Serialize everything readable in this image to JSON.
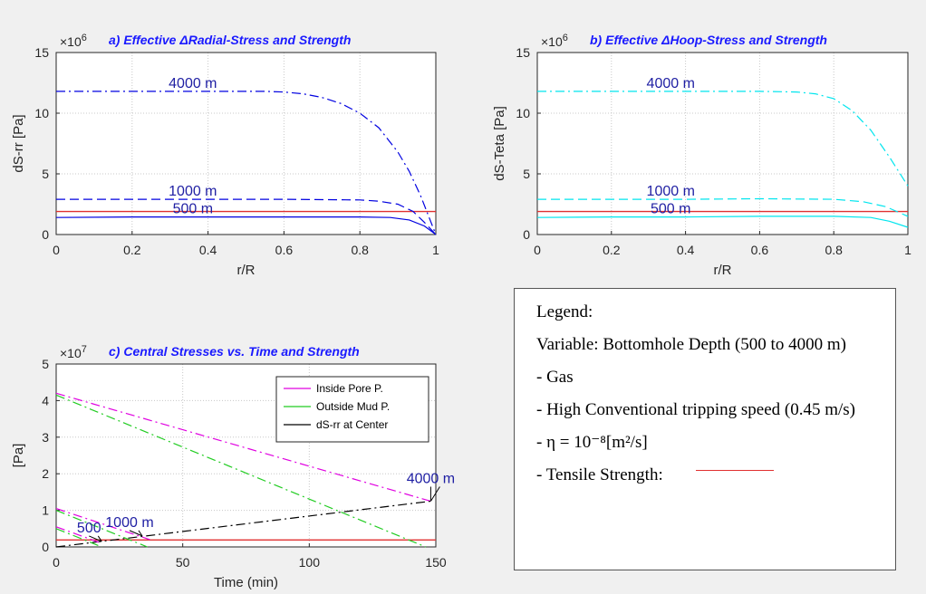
{
  "chart_data": [
    {
      "type": "line",
      "title": "a) Effective ΔRadial-Stress and Strength",
      "xlabel": "r/R",
      "ylabel": "dS-rr [Pa]",
      "exponent_label": "×10",
      "exponent": "6",
      "xlim": [
        0,
        1
      ],
      "ylim": [
        0,
        15
      ],
      "xticks": [
        "0",
        "0.2",
        "0.4",
        "0.6",
        "0.8",
        "1"
      ],
      "yticks": [
        "0",
        "5",
        "10",
        "15"
      ],
      "grid": true,
      "color": "#0000e0",
      "series": [
        {
          "annotation": "4000 m",
          "style": "dashdot",
          "x": [
            0.0,
            0.1,
            0.2,
            0.3,
            0.4,
            0.5,
            0.55,
            0.6,
            0.65,
            0.7,
            0.75,
            0.8,
            0.85,
            0.9,
            0.93,
            0.96,
            0.98,
            1.0
          ],
          "y": [
            11.8,
            11.8,
            11.8,
            11.8,
            11.8,
            11.8,
            11.8,
            11.75,
            11.6,
            11.3,
            10.8,
            10.0,
            8.8,
            6.8,
            5.2,
            3.2,
            1.6,
            0.0
          ]
        },
        {
          "annotation": "1000 m",
          "style": "dashed",
          "x": [
            0.0,
            0.2,
            0.4,
            0.6,
            0.8,
            0.85,
            0.9,
            0.94,
            0.97,
            1.0
          ],
          "y": [
            2.9,
            2.9,
            2.9,
            2.9,
            2.85,
            2.75,
            2.5,
            1.9,
            1.0,
            0.0
          ]
        },
        {
          "annotation": "500 m",
          "style": "solid",
          "x": [
            0.0,
            0.2,
            0.4,
            0.6,
            0.8,
            0.88,
            0.93,
            0.97,
            1.0
          ],
          "y": [
            1.4,
            1.45,
            1.45,
            1.45,
            1.45,
            1.4,
            1.2,
            0.7,
            0.0
          ]
        }
      ],
      "strength": 1.9,
      "strength_color": "#e03030"
    },
    {
      "type": "line",
      "title": "b) Effective ΔHoop-Stress and Strength",
      "xlabel": "r/R",
      "ylabel": "dS-Teta [Pa]",
      "exponent_label": "×10",
      "exponent": "6",
      "xlim": [
        0,
        1
      ],
      "ylim": [
        0,
        15
      ],
      "xticks": [
        "0",
        "0.2",
        "0.4",
        "0.6",
        "0.8",
        "1"
      ],
      "yticks": [
        "0",
        "5",
        "10",
        "15"
      ],
      "grid": true,
      "color": "#00e5ee",
      "series": [
        {
          "annotation": "4000 m",
          "style": "dashdot",
          "x": [
            0.0,
            0.2,
            0.4,
            0.6,
            0.7,
            0.75,
            0.8,
            0.85,
            0.9,
            0.95,
            1.0
          ],
          "y": [
            11.8,
            11.8,
            11.8,
            11.8,
            11.75,
            11.6,
            11.2,
            10.2,
            8.6,
            6.4,
            4.0
          ]
        },
        {
          "annotation": "1000 m",
          "style": "dashed",
          "x": [
            0.0,
            0.2,
            0.4,
            0.6,
            0.8,
            0.88,
            0.94,
            1.0
          ],
          "y": [
            2.9,
            2.9,
            2.9,
            2.95,
            2.9,
            2.7,
            2.3,
            1.5
          ]
        },
        {
          "annotation": "500 m",
          "style": "solid",
          "x": [
            0.0,
            0.2,
            0.4,
            0.6,
            0.8,
            0.9,
            0.95,
            1.0
          ],
          "y": [
            1.4,
            1.45,
            1.45,
            1.5,
            1.5,
            1.4,
            1.1,
            0.6
          ]
        }
      ],
      "strength": 1.9,
      "strength_color": "#e03030"
    },
    {
      "type": "line",
      "title": "c) Central Stresses vs. Time and Strength",
      "xlabel": "Time (min)",
      "ylabel": "[Pa]",
      "exponent_label": "×10",
      "exponent": "7",
      "xlim": [
        0,
        150
      ],
      "ylim": [
        0,
        5
      ],
      "xticks": [
        "0",
        "50",
        "100",
        "150"
      ],
      "yticks": [
        "0",
        "1",
        "2",
        "3",
        "4",
        "5"
      ],
      "grid": true,
      "legend": [
        "Inside Pore P.",
        "Outside Mud P.",
        "dS-rr at Center"
      ],
      "legend_colors": [
        "#e000e0",
        "#22cc22",
        "#000000"
      ],
      "legend_position": "top-right",
      "series": [
        {
          "name": "Inside Pore P.",
          "color": "#e000e0",
          "x": [
            0,
            148
          ],
          "y": [
            4.2,
            1.25
          ]
        },
        {
          "name": "Outside Mud P.",
          "color": "#22cc22",
          "x": [
            0,
            146
          ],
          "y": [
            4.15,
            0.0
          ]
        },
        {
          "name": "dS-rr at Center",
          "color": "#000000",
          "x": [
            0,
            148
          ],
          "y": [
            0.0,
            1.25
          ]
        },
        {
          "name": "Inside Pore P.",
          "color": "#e000e0",
          "x": [
            0,
            37
          ],
          "y": [
            1.05,
            0.2
          ]
        },
        {
          "name": "Outside Mud P.",
          "color": "#22cc22",
          "x": [
            0,
            36
          ],
          "y": [
            1.0,
            0.0
          ]
        },
        {
          "name": "Inside Pore P.",
          "color": "#e000e0",
          "x": [
            0,
            18
          ],
          "y": [
            0.55,
            0.1
          ]
        },
        {
          "name": "Outside Mud P.",
          "color": "#22cc22",
          "x": [
            0,
            18
          ],
          "y": [
            0.5,
            0.0
          ]
        }
      ],
      "annotations": [
        {
          "text": "4000 m",
          "x": 148,
          "y": 1.25
        },
        {
          "text": "1000 m",
          "x": 34,
          "y": 0.3
        },
        {
          "text": "500",
          "x": 18,
          "y": 0.15
        }
      ],
      "strength": 0.19,
      "strength_color": "#e03030"
    }
  ],
  "legend_panel": {
    "heading": "Legend:",
    "variable": "Variable: Bottomhole Depth (500 to 4000 m)",
    "fluid": "- Gas",
    "speed": "- High Conventional tripping speed (0.45 m/s)",
    "eta": "- η = 10⁻⁸[m²/s]",
    "strength": "- Tensile Strength:"
  }
}
